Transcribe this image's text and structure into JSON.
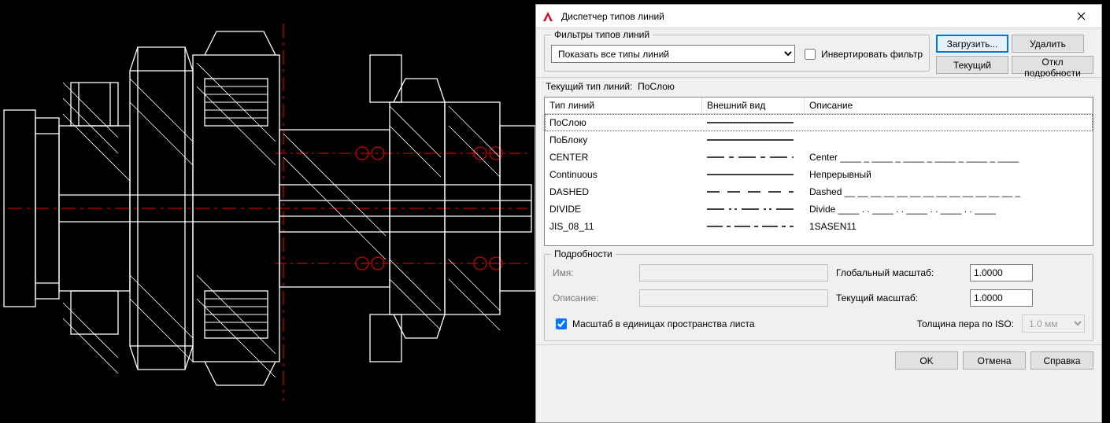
{
  "colors": {
    "cad_bg": "#000000",
    "cad_stroke": "#ffffff",
    "cad_center": "#c80000",
    "dialog_bg": "#f0f0f0",
    "button_active": "#e5f1fb",
    "button_border_active": "#0078d7"
  },
  "dialog": {
    "title": "Диспетчер типов линий",
    "filters_label": "Фильтры типов линий",
    "filter_select_value": "Показать все типы линий",
    "invert_label": "Инвертировать фильтр",
    "invert_checked": false,
    "buttons": {
      "load": "Загрузить...",
      "delete": "Удалить",
      "current": "Текущий",
      "toggle_details": "Откл подробности"
    },
    "current_line_label": "Текущий тип линий:",
    "current_line_value": "ПоСлою",
    "columns": {
      "name": "Тип линий",
      "appearance": "Внешний вид",
      "description": "Описание"
    },
    "rows": [
      {
        "name": "ПоСлою",
        "pattern": "solid",
        "description": "",
        "selected": true
      },
      {
        "name": "ПоБлоку",
        "pattern": "solid",
        "description": ""
      },
      {
        "name": "CENTER",
        "pattern": "center",
        "description": "Center ____ _ ____ _ ____ _ ____ _ ____ _ ____"
      },
      {
        "name": "Continuous",
        "pattern": "solid",
        "description": "Непрерывный"
      },
      {
        "name": "DASHED",
        "pattern": "dashed",
        "description": "Dashed __ __ __ __ __ __ __ __ __ __ __ __ __ _"
      },
      {
        "name": "DIVIDE",
        "pattern": "divide",
        "description": "Divide ____ . . ____ . . ____ . . ____ . . ____"
      },
      {
        "name": "JIS_08_11",
        "pattern": "jis",
        "description": "1SASEN11"
      }
    ],
    "details": {
      "group_label": "Подробности",
      "name_label": "Имя:",
      "name_value": "",
      "desc_label": "Описание:",
      "desc_value": "",
      "global_scale_label": "Глобальный масштаб:",
      "global_scale_value": "1.0000",
      "current_scale_label": "Текущий масштаб:",
      "current_scale_value": "1.0000",
      "iso_pen_label": "Толщина пера по ISO:",
      "iso_pen_value": "1.0 мм",
      "paper_units_label": "Масштаб в единицах пространства листа",
      "paper_units_checked": true
    },
    "bottom": {
      "ok": "OK",
      "cancel": "Отмена",
      "help": "Справка"
    }
  }
}
